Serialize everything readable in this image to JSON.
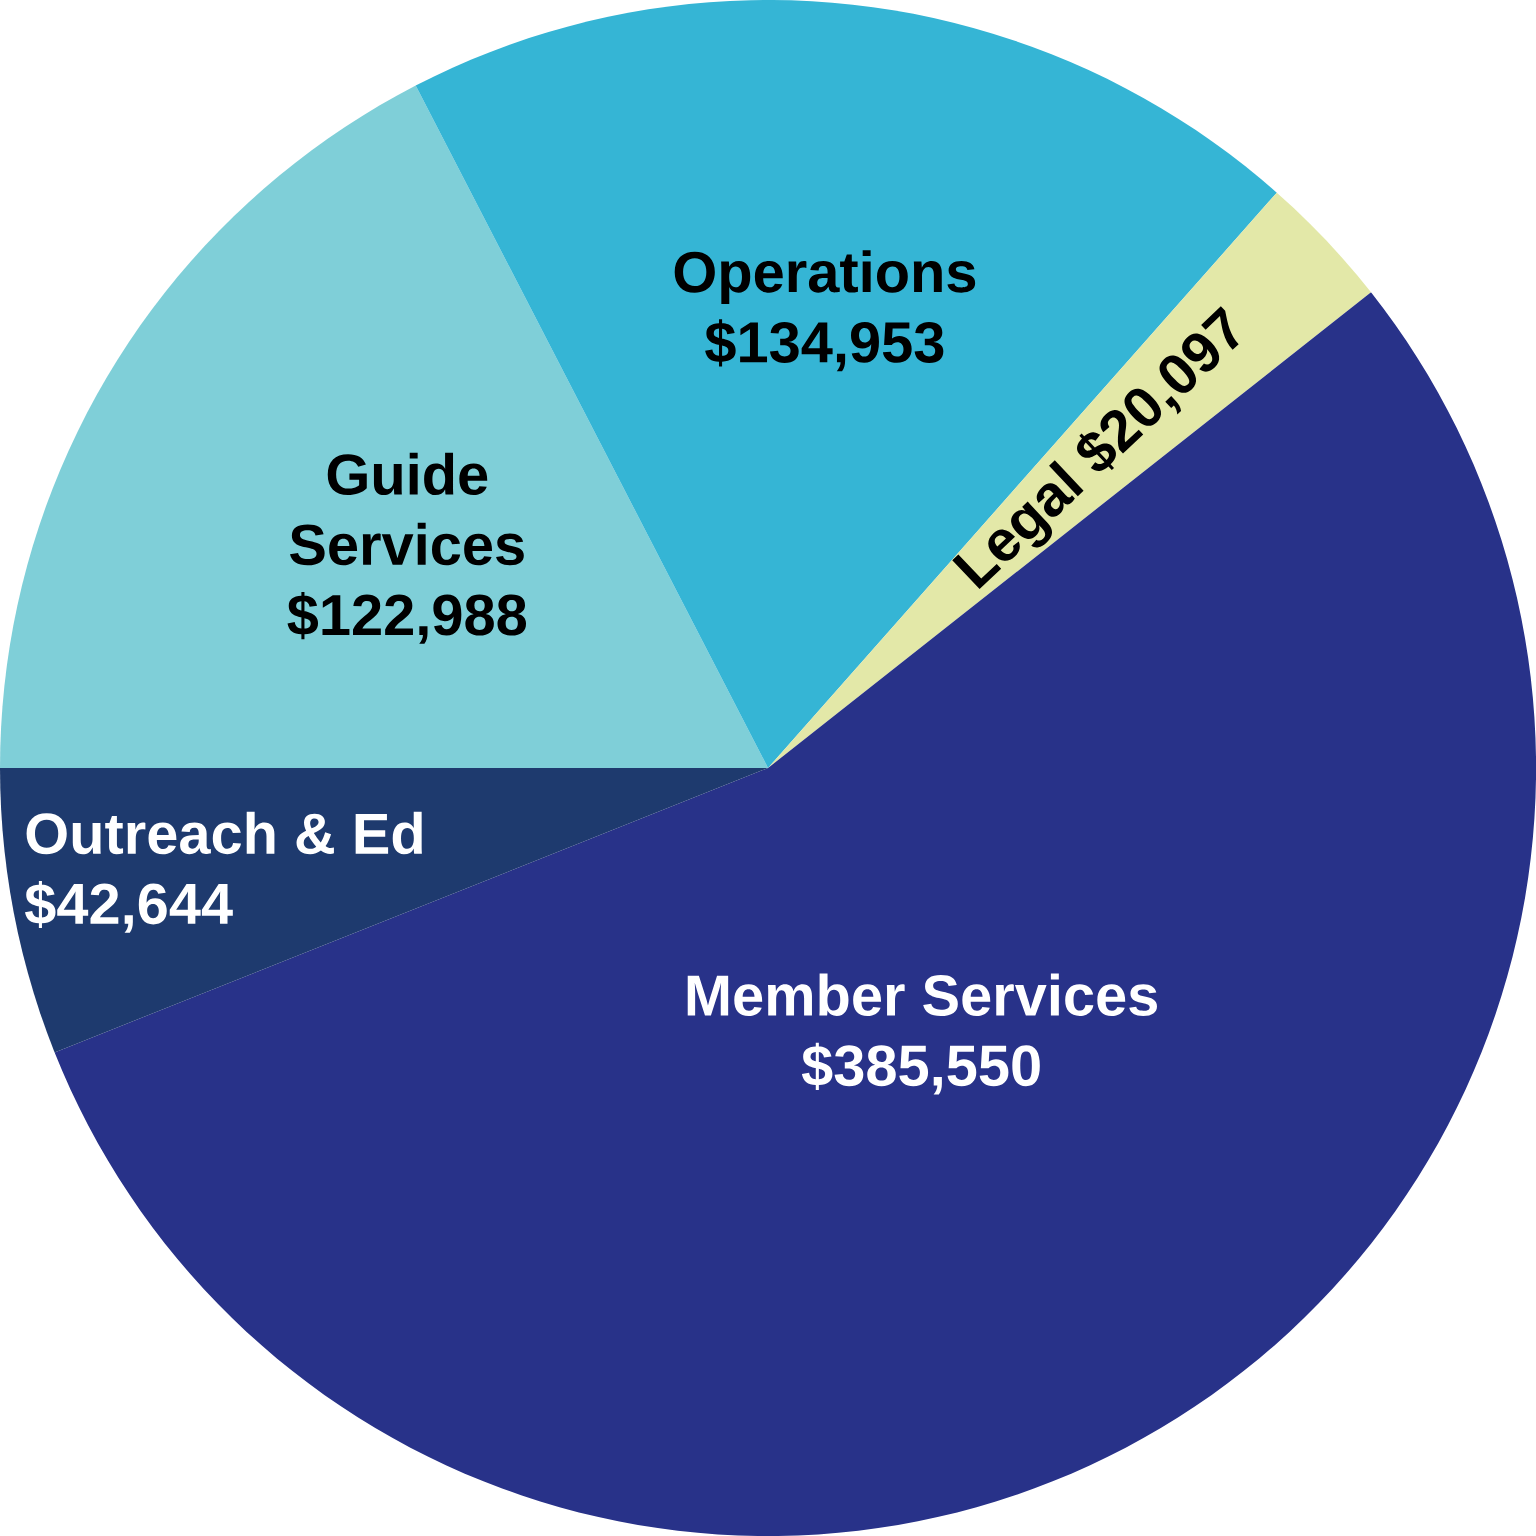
{
  "chart_data": {
    "type": "pie",
    "categories": [
      "Guide Services",
      "Operations",
      "Legal",
      "Member Services",
      "Outreach & Ed"
    ],
    "values": [
      122988,
      134953,
      20097,
      385550,
      42644
    ],
    "value_labels": [
      "$122,988",
      "$134,953",
      "$20,097",
      "$385,550",
      "$42,644"
    ],
    "colors": [
      "#7fcfd8",
      "#35b5d5",
      "#e3e8a8",
      "#283289",
      "#1e3a6e"
    ]
  }
}
